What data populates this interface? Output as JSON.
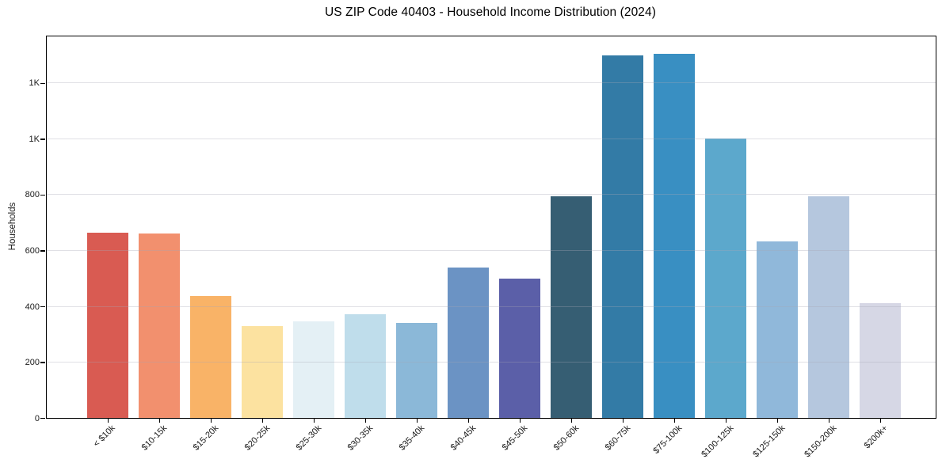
{
  "chart_data": {
    "type": "bar",
    "title": "US ZIP Code 40403 - Household Income Distribution (2024)",
    "xlabel": "",
    "ylabel": "Households",
    "categories": [
      "< $10k",
      "$10-15k",
      "$15-20k",
      "$20-25k",
      "$25-30k",
      "$30-35k",
      "$35-40k",
      "$40-45k",
      "$45-50k",
      "$50-60k",
      "$60-75k",
      "$75-100k",
      "$100-125k",
      "$125-150k",
      "$150-200k",
      "$200k+"
    ],
    "values": [
      665,
      660,
      437,
      330,
      345,
      372,
      340,
      538,
      500,
      795,
      1300,
      1305,
      1000,
      632,
      795,
      410
    ],
    "bar_colors": [
      "#d95b52",
      "#f2906e",
      "#f9b367",
      "#fce2a0",
      "#e4f0f5",
      "#bfddeb",
      "#8bb8d8",
      "#6b93c4",
      "#5b5fa8",
      "#365e73",
      "#337ba6",
      "#398fc2",
      "#5ca8cc",
      "#90b8da",
      "#b5c7de",
      "#d6d7e5"
    ],
    "ylim": [
      0,
      1367
    ],
    "yticks": {
      "values": [
        0,
        200,
        400,
        600,
        800,
        1000,
        1200
      ],
      "labels": [
        "0",
        "200",
        "400",
        "600",
        "800",
        "1K",
        "1K"
      ]
    },
    "gridline_values": [
      200,
      400,
      600,
      800,
      1000,
      1200
    ],
    "grid": "horizontal",
    "legend": "none",
    "x_tick_rotation_deg": 45,
    "colors": {
      "spine": "#000000",
      "tick_label": "#1a1a1a",
      "grid": "#e8e8ef",
      "background": "#ffffff"
    }
  }
}
